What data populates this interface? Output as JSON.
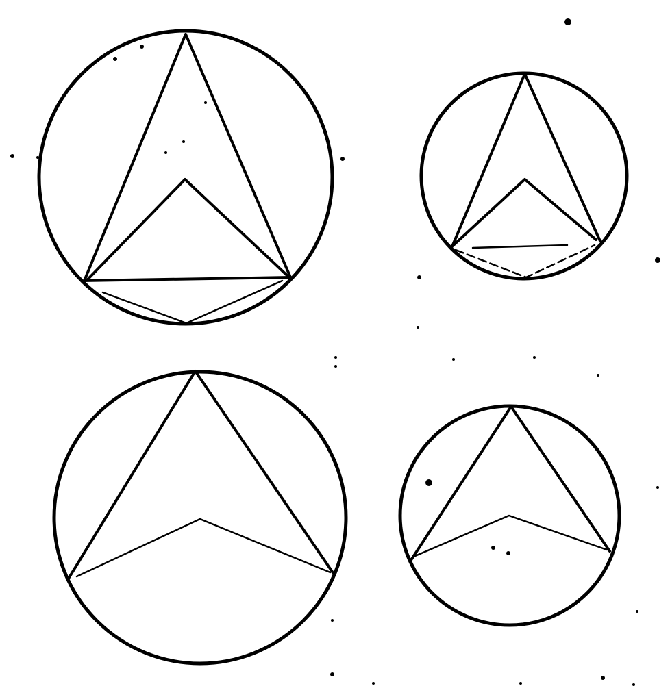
{
  "figures": [
    {
      "id": "top-left",
      "variant": "apex-chord-below"
    },
    {
      "id": "top-right",
      "variant": "apex-chord-below"
    },
    {
      "id": "bottom-left",
      "variant": "plain"
    },
    {
      "id": "bottom-right",
      "variant": "plain"
    }
  ],
  "colors": {
    "ink": "#000000",
    "paper": "#ffffff"
  }
}
